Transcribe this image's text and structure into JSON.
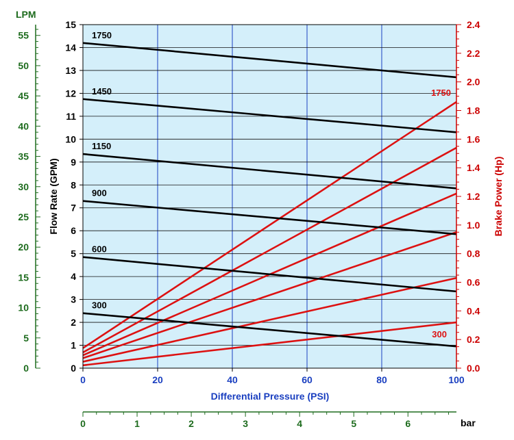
{
  "chart_data": {
    "type": "line",
    "grid": true,
    "plot_background": "#d4effa",
    "x_axis": {
      "label": "Differential Pressure (PSI)",
      "range": [
        0,
        100
      ],
      "ticks": [
        0,
        20,
        40,
        60,
        80,
        100
      ],
      "tick_labels": [
        "0",
        "20",
        "40",
        "60",
        "80",
        "100"
      ],
      "color": "#1a3fc0"
    },
    "x_axis_secondary": {
      "label": "bar",
      "range": [
        0,
        6.895
      ],
      "ticks": [
        0,
        1,
        2,
        3,
        4,
        5,
        6
      ],
      "tick_labels": [
        "0",
        "1",
        "2",
        "3",
        "4",
        "5",
        "6"
      ],
      "color": "#1d6b1d"
    },
    "y_axis_left": {
      "label": "Flow Rate (GPM)",
      "range": [
        0,
        15
      ],
      "ticks": [
        0,
        1,
        2,
        3,
        4,
        5,
        6,
        7,
        8,
        9,
        10,
        11,
        12,
        13,
        14,
        15
      ],
      "tick_labels": [
        "0",
        "1",
        "2",
        "3",
        "4",
        "5",
        "6",
        "7",
        "8",
        "9",
        "10",
        "11",
        "12",
        "13",
        "14",
        "15"
      ],
      "color": "#000000"
    },
    "y_axis_outer": {
      "label": "LPM",
      "range": [
        0,
        56.78
      ],
      "ticks": [
        0,
        5,
        10,
        15,
        20,
        25,
        30,
        35,
        40,
        45,
        50,
        55
      ],
      "tick_labels": [
        "0",
        "5",
        "10",
        "15",
        "20",
        "25",
        "30",
        "35",
        "40",
        "45",
        "50",
        "55"
      ],
      "color": "#1d6b1d"
    },
    "y_axis_right": {
      "label": "Brake Power (Hp)",
      "range": [
        0,
        2.4
      ],
      "ticks": [
        0,
        0.2,
        0.4,
        0.6,
        0.8,
        1.0,
        1.2,
        1.4,
        1.6,
        1.8,
        2.0,
        2.2,
        2.4
      ],
      "tick_labels": [
        "0.0",
        "0.2",
        "0.4",
        "0.6",
        "0.8",
        "1.0",
        "1.2",
        "1.4",
        "1.6",
        "1.8",
        "2.0",
        "2.2",
        "2.4"
      ],
      "color": "#cc0000"
    },
    "flow_series": [
      {
        "name": "1750",
        "x": [
          0,
          100
        ],
        "y": [
          14.2,
          12.7
        ]
      },
      {
        "name": "1450",
        "x": [
          0,
          100
        ],
        "y": [
          11.75,
          10.3
        ]
      },
      {
        "name": "1150",
        "x": [
          0,
          100
        ],
        "y": [
          9.35,
          7.85
        ]
      },
      {
        "name": "900",
        "x": [
          0,
          100
        ],
        "y": [
          7.3,
          5.85
        ]
      },
      {
        "name": "600",
        "x": [
          0,
          100
        ],
        "y": [
          4.85,
          3.35
        ]
      },
      {
        "name": "300",
        "x": [
          0,
          100
        ],
        "y": [
          2.4,
          0.95
        ]
      }
    ],
    "power_series": [
      {
        "name": "1750",
        "x": [
          0,
          100
        ],
        "y": [
          0.14,
          1.86
        ]
      },
      {
        "name": "",
        "x": [
          0,
          100
        ],
        "y": [
          0.11,
          1.54
        ]
      },
      {
        "name": "",
        "x": [
          0,
          100
        ],
        "y": [
          0.09,
          1.22
        ]
      },
      {
        "name": "",
        "x": [
          0,
          100
        ],
        "y": [
          0.07,
          0.95
        ]
      },
      {
        "name": "",
        "x": [
          0,
          100
        ],
        "y": [
          0.045,
          0.63
        ]
      },
      {
        "name": "300",
        "x": [
          0,
          100
        ],
        "y": [
          0.02,
          0.32
        ]
      }
    ],
    "flow_color": "#000000",
    "power_color": "#dd1111"
  }
}
